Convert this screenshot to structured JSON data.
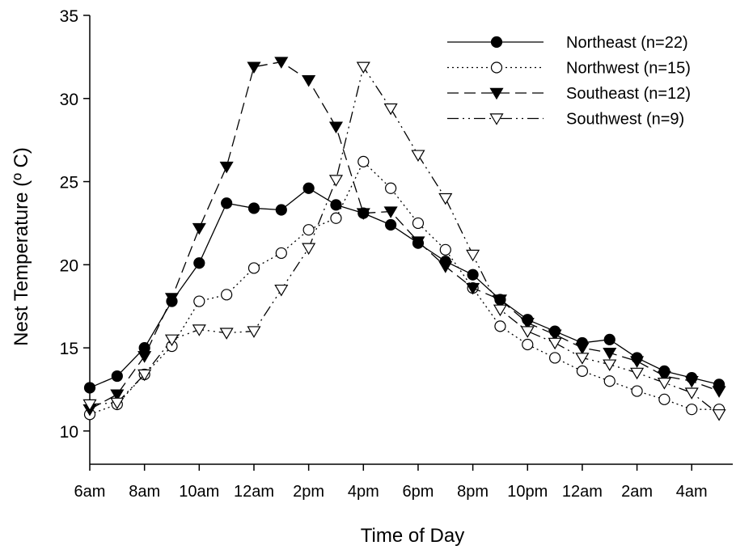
{
  "chart_data": {
    "type": "line",
    "title": "",
    "xlabel": "Time of Day",
    "ylabel": "Nest Temperature (º C)",
    "ylim": [
      8,
      35
    ],
    "y_ticks": [
      10,
      15,
      20,
      25,
      30,
      35
    ],
    "x_tick_labels": [
      "6am",
      "8am",
      "10am",
      "12am",
      "2pm",
      "4pm",
      "6pm",
      "8pm",
      "10pm",
      "12am",
      "2am",
      "4am"
    ],
    "x_hours": [
      6,
      7,
      8,
      9,
      10,
      11,
      12,
      13,
      14,
      15,
      16,
      17,
      18,
      19,
      20,
      21,
      22,
      23,
      24,
      25,
      26,
      27,
      28,
      29
    ],
    "grid": false,
    "legend_position": "top-right",
    "series": [
      {
        "name": "Northeast (n=22)",
        "marker": "filled-circle",
        "dash": "solid",
        "values": [
          12.6,
          13.3,
          15.0,
          17.8,
          20.1,
          23.7,
          23.4,
          23.3,
          24.6,
          23.6,
          23.1,
          22.4,
          21.3,
          20.2,
          19.4,
          17.9,
          16.7,
          16.0,
          15.3,
          15.5,
          14.4,
          13.6,
          13.2,
          12.8
        ]
      },
      {
        "name": "Northwest (n=15)",
        "marker": "open-circle",
        "dash": "dotted",
        "values": [
          11.0,
          11.6,
          13.4,
          15.1,
          17.8,
          18.2,
          19.8,
          20.7,
          22.1,
          22.8,
          26.2,
          24.6,
          22.5,
          20.9,
          18.6,
          16.3,
          15.2,
          14.4,
          13.6,
          13.0,
          12.4,
          11.9,
          11.3,
          11.3
        ]
      },
      {
        "name": "Southeast (n=12)",
        "marker": "filled-triangle-down",
        "dash": "dashed",
        "values": [
          11.3,
          12.2,
          14.5,
          18.0,
          22.2,
          25.9,
          31.9,
          32.2,
          31.1,
          28.3,
          23.1,
          23.2,
          21.4,
          19.9,
          18.6,
          17.9,
          16.5,
          15.8,
          15.0,
          14.7,
          14.2,
          13.3,
          13.0,
          12.4
        ]
      },
      {
        "name": "Southwest (n=9)",
        "marker": "open-triangle-down",
        "dash": "dash-dot-dot",
        "values": [
          11.6,
          11.7,
          13.4,
          15.5,
          16.1,
          15.9,
          16.0,
          18.5,
          21.0,
          25.1,
          31.9,
          29.4,
          26.6,
          24.0,
          20.6,
          17.3,
          16.0,
          15.3,
          14.4,
          14.0,
          13.5,
          12.9,
          12.3,
          11.0
        ]
      }
    ]
  }
}
